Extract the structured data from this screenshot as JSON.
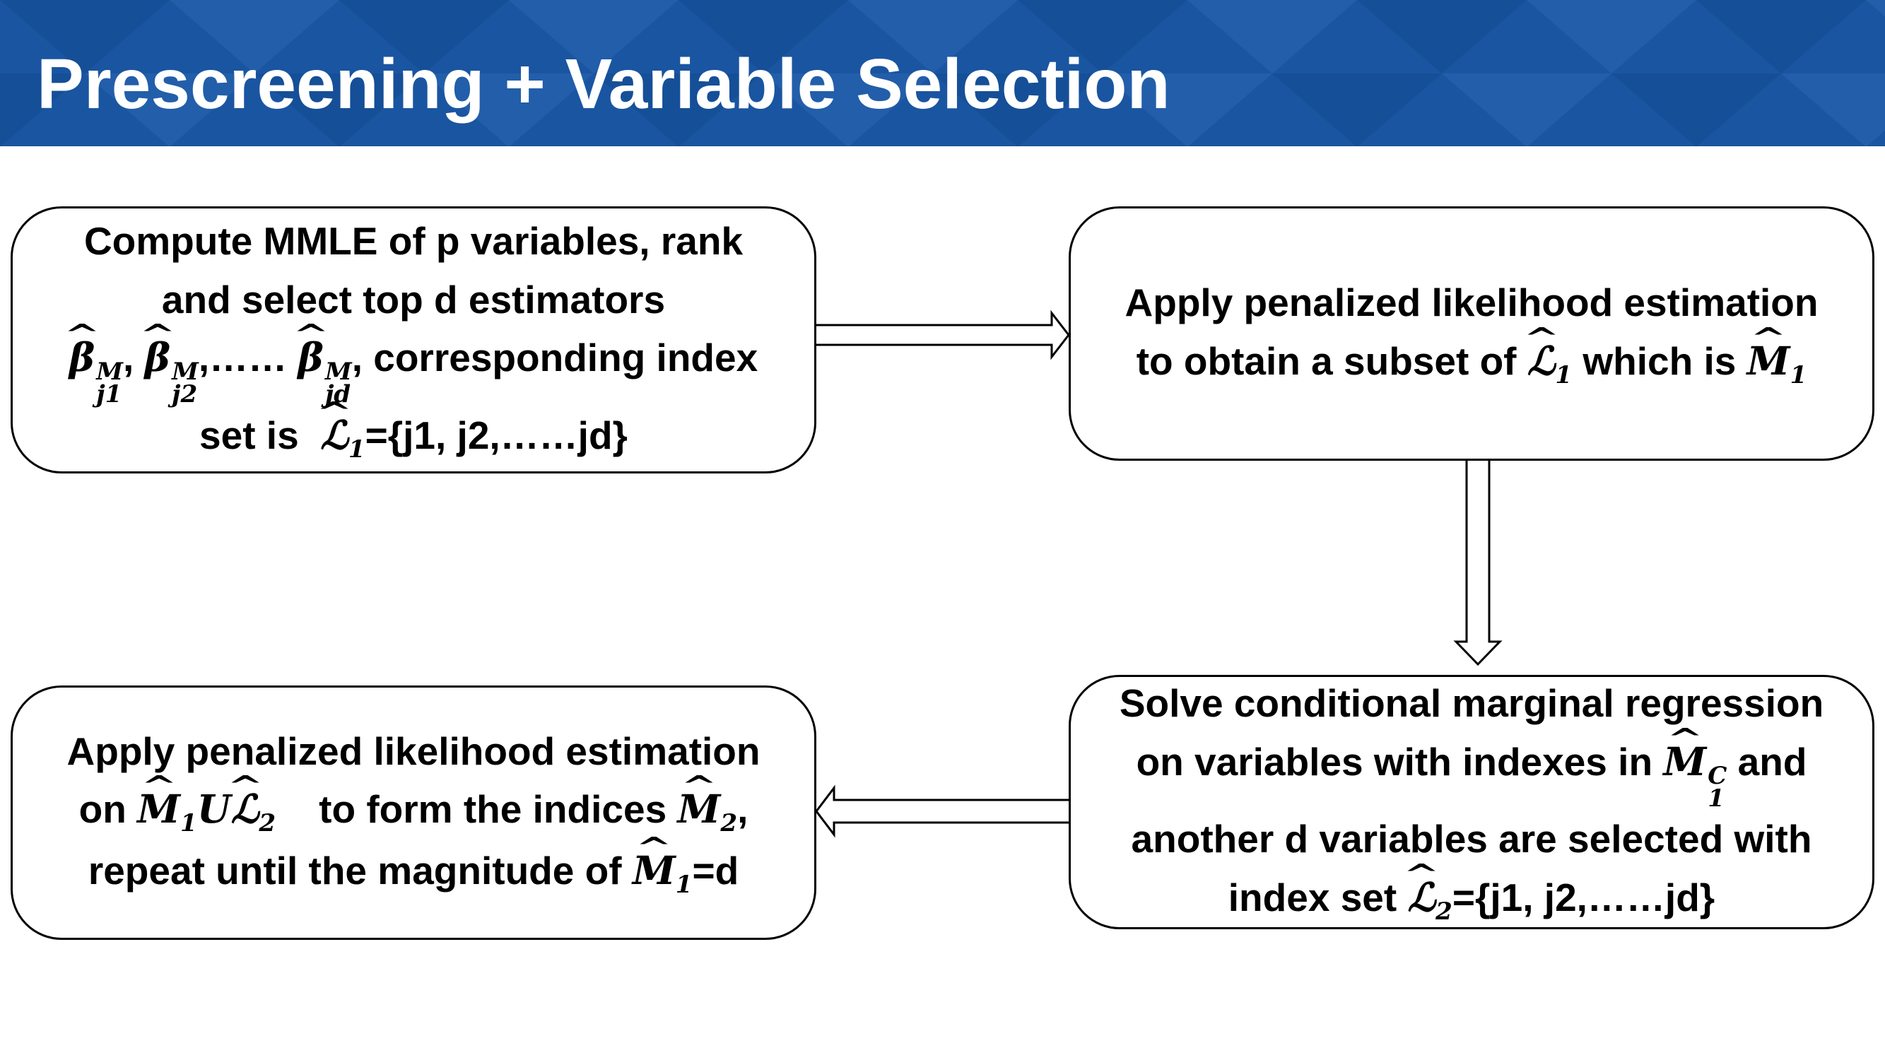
{
  "title": "Prescreening + Variable Selection",
  "colors": {
    "banner": "#1a55a1",
    "banner_light": "#2a66b2",
    "banner_dark": "#134a8f"
  },
  "boxes": {
    "step1": {
      "line1": "Compute MMLE of p variables, rank",
      "line2": "and select top d estimators",
      "beta": "β",
      "sup_m": "M",
      "sub1": "j1",
      "sub2": "j2",
      "sub3": "jd",
      "comma": ",",
      "dots": ",……",
      "tail": ", corresponding index",
      "set_is": "set is",
      "L": "ℒ",
      "one": "1",
      "set_vals": "={j1, j2,……jd}"
    },
    "step2": {
      "line1": "Apply penalized likelihood estimation",
      "prefix": "to obtain a subset of",
      "L": "ℒ",
      "one": "1",
      "which_is": "which is",
      "M": "M"
    },
    "step3": {
      "line1": "Solve conditional marginal regression",
      "prefix": "on variables with indexes in",
      "M": "M",
      "sup_c": "C",
      "one": "1",
      "and": "and",
      "line3": "another d variables are selected with",
      "index_set": "index set",
      "L": "ℒ",
      "two": "2",
      "set_vals": "={j1, j2,……jd}"
    },
    "step4": {
      "line1": "Apply penalized likelihood estimation",
      "on": "on",
      "M": "M",
      "one": "1",
      "U": "U",
      "L": "ℒ",
      "two": "2",
      "to_form": "to form the indices",
      "comma": ",",
      "line3_prefix": "repeat until the magnitude of",
      "eq_d": "=d"
    }
  }
}
